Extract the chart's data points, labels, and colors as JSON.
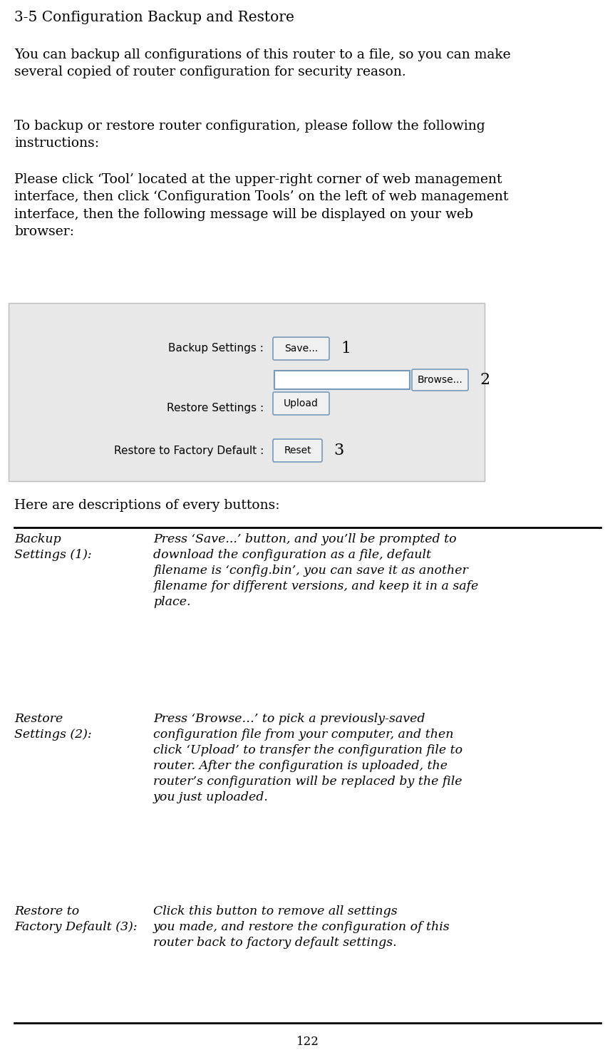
{
  "title": "3-5 Configuration Backup and Restore",
  "para1": "You can backup all configurations of this router to a file, so you can make\nseveral copied of router configuration for security reason.",
  "para2": "To backup or restore router configuration, please follow the following\ninstructions:",
  "para3": "Please click ‘Tool’ located at the upper-right corner of web management\ninterface, then click ‘Configuration Tools’ on the left of web management\ninterface, then the following message will be displayed on your web\nbrowser:",
  "here_text": "Here are descriptions of every buttons:",
  "table_rows": [
    {
      "label": "Backup\nSettings (1):",
      "desc": "Press ‘Save...’ button, and you’ll be prompted to\ndownload the configuration as a file, default\nfilename is ‘config.bin’, you can save it as another\nfilename for different versions, and keep it in a safe\nplace."
    },
    {
      "label": "Restore\nSettings (2):",
      "desc": "Press ‘Browse…’ to pick a previously-saved\nconfiguration file from your computer, and then\nclick ‘Upload’ to transfer the configuration file to\nrouter. After the configuration is uploaded, the\nrouter’s configuration will be replaced by the file\nyou just uploaded."
    },
    {
      "label": "Restore to\nFactory Default (3):",
      "desc": "Click this button to remove all settings\nyou made, and restore the configuration of this\nrouter back to factory default settings."
    }
  ],
  "page_number": "122",
  "bg_color": "#ffffff",
  "text_color": "#000000",
  "box_bg": "#e8e8e8",
  "box_border": "#bbbbbb",
  "button_bg": "#f0f0f0",
  "button_border": "#7799bb",
  "input_bg": "#ffffff",
  "input_border": "#7799bb"
}
